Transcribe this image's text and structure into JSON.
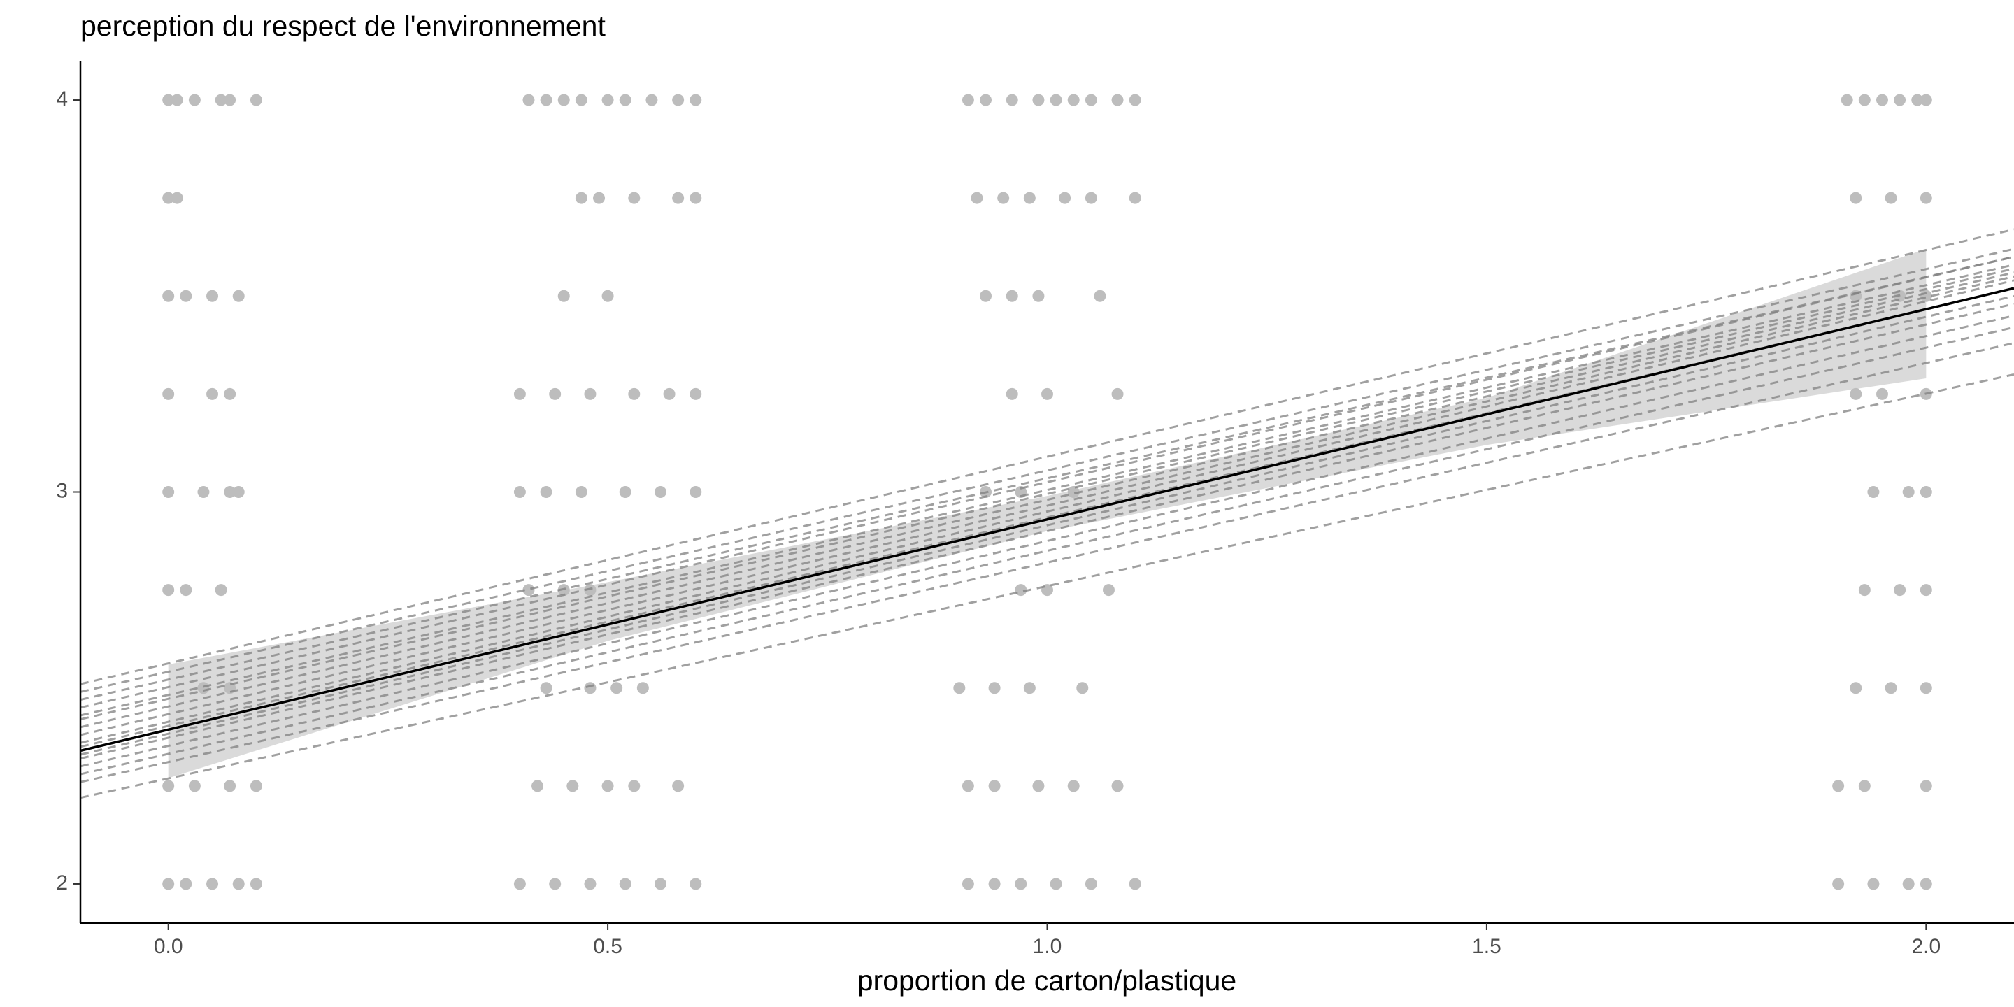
{
  "chart_data": {
    "type": "scatter",
    "title": "perception du respect de l'environnement",
    "x_label": "proportion de carton/plastique",
    "xlim": [
      -0.1,
      2.1
    ],
    "ylim": [
      1.9,
      4.1
    ],
    "xticks": [
      {
        "value": 0,
        "label": "0.0"
      },
      0.5,
      {
        "value": 1,
        "label": "1.0"
      },
      1.5,
      {
        "value": 2,
        "label": "2.0"
      }
    ],
    "yticks": [
      2,
      3,
      4
    ],
    "grid": false,
    "point_color": "#bdbdbd",
    "points": [
      {
        "y": 4,
        "x": [
          0,
          0.01,
          0.03,
          0.06,
          0.07,
          0.1,
          0.41,
          0.43,
          0.45,
          0.47,
          0.5,
          0.52,
          0.55,
          0.58,
          0.6,
          0.91,
          0.93,
          0.96,
          0.99,
          1.01,
          1.03,
          1.05,
          1.08,
          1.1,
          1.91,
          1.93,
          1.95,
          1.97,
          1.99,
          2.0
        ]
      },
      {
        "y": 3.75,
        "x": [
          0,
          0.01,
          0.47,
          0.49,
          0.53,
          0.58,
          0.6,
          0.92,
          0.95,
          0.98,
          1.02,
          1.05,
          1.1,
          1.92,
          1.96,
          2.0
        ]
      },
      {
        "y": 3.5,
        "x": [
          0,
          0.02,
          0.05,
          0.08,
          0.45,
          0.5,
          0.93,
          0.96,
          0.99,
          1.06,
          1.92,
          1.97,
          2.0
        ]
      },
      {
        "y": 3.25,
        "x": [
          0,
          0.05,
          0.07,
          0.4,
          0.44,
          0.48,
          0.53,
          0.57,
          0.6,
          0.96,
          1.0,
          1.08,
          1.92,
          1.95,
          2.0
        ]
      },
      {
        "y": 3,
        "x": [
          0,
          0.04,
          0.07,
          0.08,
          0.4,
          0.43,
          0.47,
          0.52,
          0.56,
          0.6,
          0.93,
          0.97,
          1.03,
          1.94,
          1.98,
          2.0
        ]
      },
      {
        "y": 2.75,
        "x": [
          0,
          0.02,
          0.06,
          0.41,
          0.45,
          0.48,
          0.97,
          1.0,
          1.07,
          1.93,
          1.97,
          2.0
        ]
      },
      {
        "y": 2.5,
        "x": [
          0.04,
          0.07,
          0.43,
          0.48,
          0.51,
          0.54,
          0.9,
          0.94,
          0.98,
          1.04,
          1.92,
          1.96,
          2.0
        ]
      },
      {
        "y": 2.25,
        "x": [
          0,
          0.03,
          0.07,
          0.1,
          0.42,
          0.46,
          0.5,
          0.53,
          0.58,
          0.91,
          0.94,
          0.99,
          1.03,
          1.08,
          1.9,
          1.93,
          2.0
        ]
      },
      {
        "y": 2,
        "x": [
          0,
          0.02,
          0.05,
          0.08,
          0.1,
          0.4,
          0.44,
          0.48,
          0.52,
          0.56,
          0.6,
          0.91,
          0.94,
          0.97,
          1.01,
          1.05,
          1.1,
          1.9,
          1.94,
          1.98,
          2.0
        ]
      }
    ],
    "ribbon": {
      "color": "#d3d3d3",
      "x": [
        0,
        0.5,
        1,
        1.5,
        2
      ],
      "lower": [
        2.27,
        2.62,
        2.9,
        3.12,
        3.29
      ],
      "upper": [
        2.56,
        2.77,
        2.99,
        3.24,
        3.62
      ]
    },
    "group_lines": {
      "color": "#808080",
      "x": [
        -0.1,
        2.1
      ],
      "values": [
        [
          2.22,
          3.3
        ],
        [
          2.26,
          3.38
        ],
        [
          2.28,
          3.42
        ],
        [
          2.3,
          3.45
        ],
        [
          2.32,
          3.48
        ],
        [
          2.33,
          3.5
        ],
        [
          2.35,
          3.52
        ],
        [
          2.36,
          3.54
        ],
        [
          2.38,
          3.55
        ],
        [
          2.4,
          3.56
        ],
        [
          2.42,
          3.57
        ],
        [
          2.43,
          3.58
        ],
        [
          2.45,
          3.6
        ],
        [
          2.47,
          3.6
        ],
        [
          2.49,
          3.62
        ],
        [
          2.51,
          3.67
        ]
      ]
    },
    "fit": {
      "color": "#000000",
      "x": [
        -0.1,
        2.1
      ],
      "values": [
        2.34,
        3.52
      ]
    }
  }
}
